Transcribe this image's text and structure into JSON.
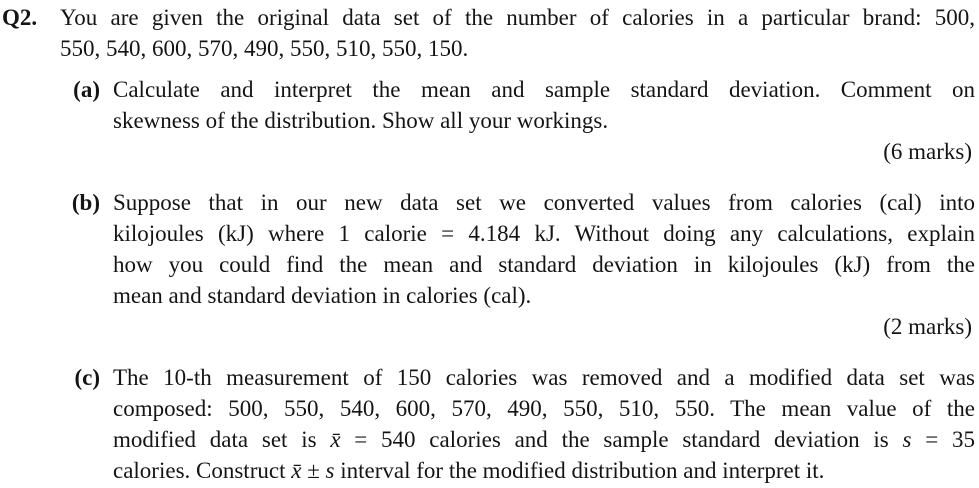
{
  "page": {
    "background_color": "#ffffff",
    "text_color": "#141414"
  },
  "question": {
    "number": "Q2.",
    "intro_lines": [
      "You are given the original data set of the number of calories in a particular brand: 500,",
      "550, 540, 600, 570, 490, 550, 510, 550, 150."
    ],
    "parts": [
      {
        "label": "(a)",
        "lines": [
          "Calculate and interpret the mean and sample standard deviation. Comment on",
          "skewness of the distribution. Show all your workings."
        ],
        "marks": "(6 marks)"
      },
      {
        "label": "(b)",
        "lines": [
          "Suppose that in our new data set we converted values from calories (cal) into",
          "kilojoules (kJ) where 1 calorie = 4.184 kJ. Without doing any calculations, explain",
          "how you could find the mean and standard deviation in kilojoules (kJ) from the",
          "mean and standard deviation in calories (cal)."
        ],
        "marks": "(2 marks)"
      },
      {
        "label": "(c)",
        "lines": [
          "The 10-th measurement of 150 calories was removed and a modified data set was",
          "composed: 500, 550, 540, 600, 570, 490, 550, 510, 550. The mean value of the"
        ],
        "line3": {
          "pre": "modified data set is ",
          "math1": "x̄",
          "mid": " = 540 calories and the sample standard deviation is ",
          "math2": "s",
          "end": " = 35"
        },
        "line4": {
          "pre": "calories. Construct ",
          "math": "x̄ ± s",
          "end": " interval for the modified distribution and interpret it."
        }
      }
    ]
  }
}
